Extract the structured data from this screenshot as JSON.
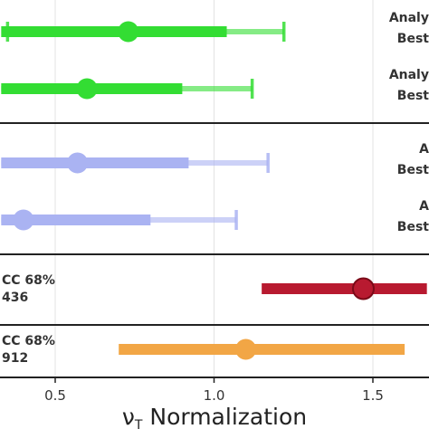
{
  "chart_data": {
    "type": "forest",
    "xlabel_main": "ν",
    "xlabel_sub": "T",
    "xlabel_rest": " Normalization",
    "xlim": [
      0.33,
      1.67
    ],
    "xticks": [
      0.5,
      1.0,
      1.5
    ],
    "xtick_labels": [
      "0.5",
      "1.0",
      "1.5"
    ],
    "grid": true,
    "panels": [
      {
        "rows": [
          {
            "label1": "Analy",
            "label2": "Best",
            "center": 0.73,
            "inner": [
              0.33,
              1.04
            ],
            "outer": [
              0.35,
              1.22
            ],
            "color": "#33dd33"
          },
          {
            "label1": "Analy",
            "label2": "Best",
            "center": 0.6,
            "inner": [
              0.33,
              0.9
            ],
            "outer": [
              0.33,
              1.12
            ],
            "color": "#33dd33"
          }
        ]
      },
      {
        "rows": [
          {
            "label1": "A",
            "label2": "Best",
            "center": 0.57,
            "inner": [
              0.33,
              0.92
            ],
            "outer": [
              0.33,
              1.17
            ],
            "color": "#aab3f2"
          },
          {
            "label1": "A",
            "label2": "Best",
            "center": 0.4,
            "inner": [
              0.33,
              0.8
            ],
            "outer": [
              0.33,
              1.07
            ],
            "color": "#aab3f2"
          }
        ]
      },
      {
        "rows": [
          {
            "label1": "CC 68%",
            "label2": "436",
            "center": 1.47,
            "inner": [
              1.15,
              1.67
            ],
            "outer": null,
            "color": "#b81a30"
          }
        ]
      },
      {
        "rows": [
          {
            "label1": "CC 68%",
            "label2": "912",
            "center": 1.1,
            "inner": [
              0.7,
              1.6
            ],
            "outer": null,
            "color": "#f2a645"
          }
        ]
      }
    ]
  }
}
